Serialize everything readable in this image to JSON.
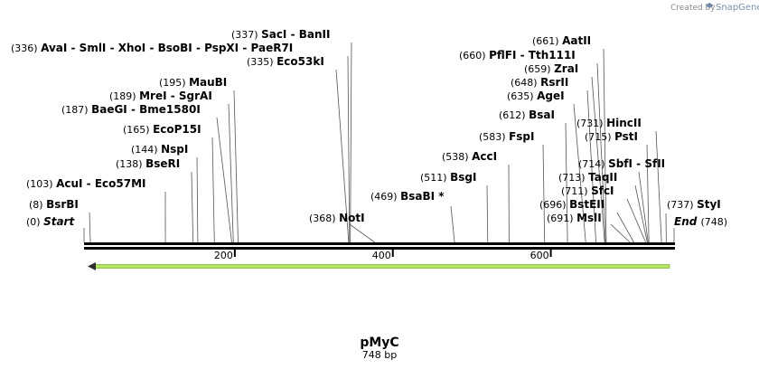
{
  "credit": {
    "prefix": "Created by",
    "brand": "SnapGene"
  },
  "title": "pMyC",
  "subtitle": "748 bp",
  "chart_data": {
    "type": "linear-map",
    "length": 748,
    "ticks": [
      200,
      400,
      600
    ],
    "feature_arrow": {
      "start": 0,
      "end": 748,
      "direction": "reverse",
      "color": "#b2e65c"
    },
    "start_label": {
      "text": "Start",
      "pos_text": "(0)",
      "bp": 0
    },
    "end_label": {
      "text": "End",
      "pos_text": "(748)",
      "bp": 748
    },
    "sites": [
      {
        "pos_text": "(336)",
        "bp": 336,
        "names": [
          "AvaI",
          "SmlI",
          "XhoI",
          "BsoBI",
          "PspXI",
          "PaeR7I"
        ]
      },
      {
        "pos_text": "(337)",
        "bp": 337,
        "names": [
          "SacI",
          "BanII"
        ]
      },
      {
        "pos_text": "(335)",
        "bp": 335,
        "names": [
          "Eco53kI"
        ]
      },
      {
        "pos_text": "(195)",
        "bp": 195,
        "names": [
          "MauBI"
        ]
      },
      {
        "pos_text": "(189)",
        "bp": 189,
        "names": [
          "MreI",
          "SgrAI"
        ]
      },
      {
        "pos_text": "(187)",
        "bp": 187,
        "names": [
          "BaeGI",
          "Bme1580I"
        ]
      },
      {
        "pos_text": "(165)",
        "bp": 165,
        "names": [
          "EcoP15I"
        ]
      },
      {
        "pos_text": "(144)",
        "bp": 144,
        "names": [
          "NspI"
        ]
      },
      {
        "pos_text": "(138)",
        "bp": 138,
        "names": [
          "BseRI"
        ]
      },
      {
        "pos_text": "(103)",
        "bp": 103,
        "names": [
          "AcuI",
          "Eco57MI"
        ]
      },
      {
        "pos_text": "(8)",
        "bp": 8,
        "names": [
          "BsrBI"
        ]
      },
      {
        "pos_text": "(368)",
        "bp": 368,
        "names": [
          "NotI"
        ]
      },
      {
        "pos_text": "(469)",
        "bp": 469,
        "names": [
          "BsaBI *"
        ]
      },
      {
        "pos_text": "(511)",
        "bp": 511,
        "names": [
          "BsgI"
        ]
      },
      {
        "pos_text": "(538)",
        "bp": 538,
        "names": [
          "AccI"
        ]
      },
      {
        "pos_text": "(583)",
        "bp": 583,
        "names": [
          "FspI"
        ]
      },
      {
        "pos_text": "(612)",
        "bp": 612,
        "names": [
          "BsaI"
        ]
      },
      {
        "pos_text": "(635)",
        "bp": 635,
        "names": [
          "AgeI"
        ]
      },
      {
        "pos_text": "(648)",
        "bp": 648,
        "names": [
          "RsrII"
        ]
      },
      {
        "pos_text": "(659)",
        "bp": 659,
        "names": [
          "ZraI"
        ]
      },
      {
        "pos_text": "(660)",
        "bp": 660,
        "names": [
          "PflFI",
          "Tth111I"
        ]
      },
      {
        "pos_text": "(661)",
        "bp": 661,
        "names": [
          "AatII"
        ]
      },
      {
        "pos_text": "(731)",
        "bp": 731,
        "names": [
          "HincII"
        ]
      },
      {
        "pos_text": "(715)",
        "bp": 715,
        "names": [
          "PstI"
        ]
      },
      {
        "pos_text": "(714)",
        "bp": 714,
        "names": [
          "SbfI",
          "SfII"
        ]
      },
      {
        "pos_text": "(713)",
        "bp": 713,
        "names": [
          "TaqII"
        ]
      },
      {
        "pos_text": "(711)",
        "bp": 711,
        "names": [
          "SfcI"
        ]
      },
      {
        "pos_text": "(696)",
        "bp": 696,
        "names": [
          "BstEII"
        ]
      },
      {
        "pos_text": "(691)",
        "bp": 691,
        "names": [
          "MslI"
        ]
      },
      {
        "pos_text": "(737)",
        "bp": 737,
        "names": [
          "StyI"
        ]
      }
    ]
  }
}
